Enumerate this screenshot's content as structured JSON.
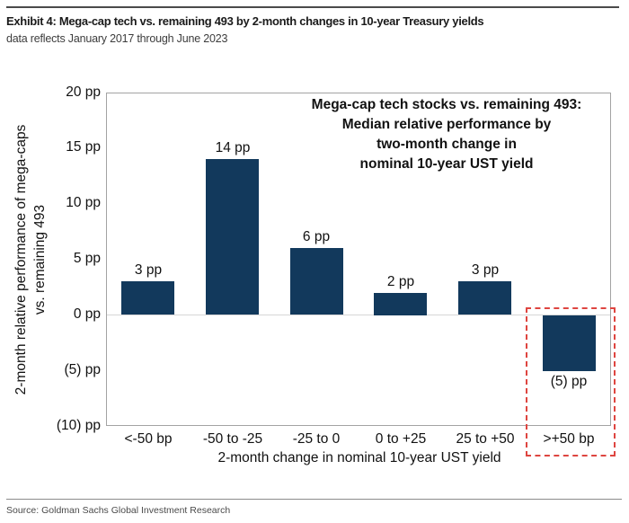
{
  "header": {
    "title": "Exhibit 4: Mega-cap tech vs. remaining 493 by 2-month changes in 10-year Treasury yields",
    "subtitle": "data reflects January 2017 through June 2023"
  },
  "chart_data": {
    "type": "bar",
    "title": "Mega-cap tech stocks vs. remaining 493: Median relative performance by two-month change in nominal 10-year UST yield",
    "annotation_lines": [
      "Mega-cap tech stocks vs. remaining 493:",
      "Median relative performance by",
      "two-month change in",
      "nominal 10-year UST yield"
    ],
    "categories": [
      "<-50 bp",
      "-50 to -25",
      "-25 to 0",
      "0 to +25",
      "25 to +50",
      ">+50 bp"
    ],
    "values": [
      3,
      14,
      6,
      2,
      3,
      -5
    ],
    "bar_labels": [
      "3 pp",
      "14 pp",
      "6 pp",
      "2 pp",
      "3 pp",
      "(5) pp"
    ],
    "xlabel": "2-month change in nominal 10-year UST yield",
    "ylabel": "2-month relative performance of mega-caps vs. remaining 493",
    "ylabel_lines": [
      "2-month relative performance of mega-caps",
      "vs. remaining 493"
    ],
    "ylim": [
      -10,
      20
    ],
    "ytick_values": [
      20,
      15,
      10,
      5,
      0,
      -5,
      -10
    ],
    "ytick_labels": [
      "20 pp",
      "15 pp",
      "10 pp",
      "5 pp",
      "0 pp",
      "(5) pp",
      "(10) pp"
    ],
    "grid": "zero-line-only",
    "legend": "none",
    "bar_color": "#12395c",
    "highlight": {
      "category_index": 5,
      "box_color": "#de4540",
      "style": "dashed"
    }
  },
  "footer": {
    "source": "Source: Goldman Sachs Global Investment Research"
  }
}
